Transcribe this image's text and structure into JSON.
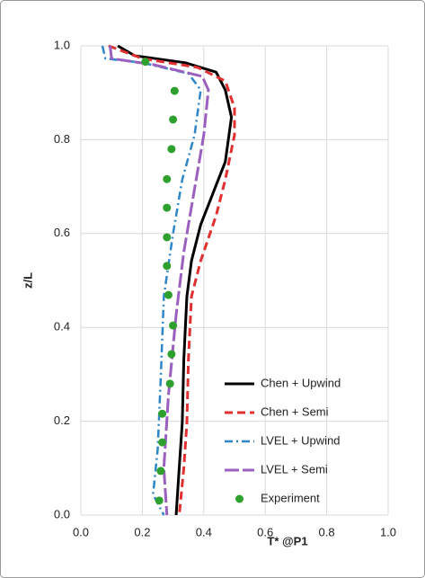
{
  "chart_data": {
    "type": "line",
    "x_label": "T* @P1",
    "y_label": "z/L",
    "xlim": [
      0,
      1
    ],
    "ylim": [
      0,
      1
    ],
    "xticks": [
      {
        "value": 0,
        "label": "0.0"
      },
      {
        "value": 0.2,
        "label": "0.2"
      },
      {
        "value": 0.4,
        "label": "0.4"
      },
      {
        "value": 0.6,
        "label": "0.6"
      },
      {
        "value": 0.8,
        "label": "0.8"
      },
      {
        "value": 1,
        "label": "1.0"
      }
    ],
    "yticks": [
      {
        "value": 0,
        "label": "0.0"
      },
      {
        "value": 0.2,
        "label": "0.2"
      },
      {
        "value": 0.4,
        "label": "0.4"
      },
      {
        "value": 0.6,
        "label": "0.6"
      },
      {
        "value": 0.8,
        "label": "0.8"
      },
      {
        "value": 1,
        "label": "1.0"
      }
    ],
    "grid": true,
    "legend": "lower right",
    "series": [
      {
        "name": "Chen + Upwind",
        "color": "#000000",
        "line": "solid",
        "x": [
          0.12,
          0.175,
          0.34,
          0.44,
          0.47,
          0.49,
          0.47,
          0.43,
          0.39,
          0.36,
          0.345,
          0.335,
          0.33,
          0.32,
          0.31
        ],
        "y": [
          1.0,
          0.979,
          0.964,
          0.944,
          0.906,
          0.848,
          0.753,
          0.686,
          0.619,
          0.542,
          0.466,
          0.331,
          0.197,
          0.1,
          0
        ]
      },
      {
        "name": "Chen + Semi",
        "color": "#e03030",
        "line": "dashed",
        "x": [
          0.09,
          0.2,
          0.38,
          0.47,
          0.5,
          0.5,
          0.47,
          0.44,
          0.39,
          0.36,
          0.35,
          0.345,
          0.335,
          0.32
        ],
        "y": [
          1.0,
          0.973,
          0.954,
          0.925,
          0.868,
          0.81,
          0.715,
          0.638,
          0.542,
          0.466,
          0.331,
          0.197,
          0.1,
          0
        ]
      },
      {
        "name": "LVEL + Upwind",
        "color": "#2e86c8",
        "line": "dashdot",
        "x": [
          0.07,
          0.08,
          0.2,
          0.35,
          0.39,
          0.37,
          0.33,
          0.3,
          0.27,
          0.26,
          0.25,
          0.235,
          0.27
        ],
        "y": [
          1.0,
          0.973,
          0.964,
          0.941,
          0.906,
          0.81,
          0.715,
          0.6,
          0.466,
          0.293,
          0.14,
          0.044,
          0
        ]
      },
      {
        "name": "LVEL + Semi",
        "color": "#9b5fc0",
        "line": "longdash",
        "x": [
          0.095,
          0.1,
          0.235,
          0.395,
          0.415,
          0.4,
          0.365,
          0.335,
          0.31,
          0.285,
          0.27,
          0.28
        ],
        "y": [
          1.0,
          0.973,
          0.96,
          0.935,
          0.906,
          0.81,
          0.676,
          0.561,
          0.427,
          0.255,
          0.1,
          0
        ]
      },
      {
        "name": "Experiment",
        "color": "#2ea02e",
        "line": "none",
        "marker": "circle",
        "x": [
          0.21,
          0.305,
          0.3,
          0.295,
          0.28,
          0.28,
          0.28,
          0.28,
          0.285,
          0.3,
          0.295,
          0.29,
          0.265,
          0.265,
          0.26,
          0.255
        ],
        "y": [
          0.966,
          0.904,
          0.843,
          0.78,
          0.716,
          0.655,
          0.592,
          0.531,
          0.469,
          0.404,
          0.343,
          0.28,
          0.216,
          0.155,
          0.094,
          0.031
        ]
      }
    ]
  }
}
